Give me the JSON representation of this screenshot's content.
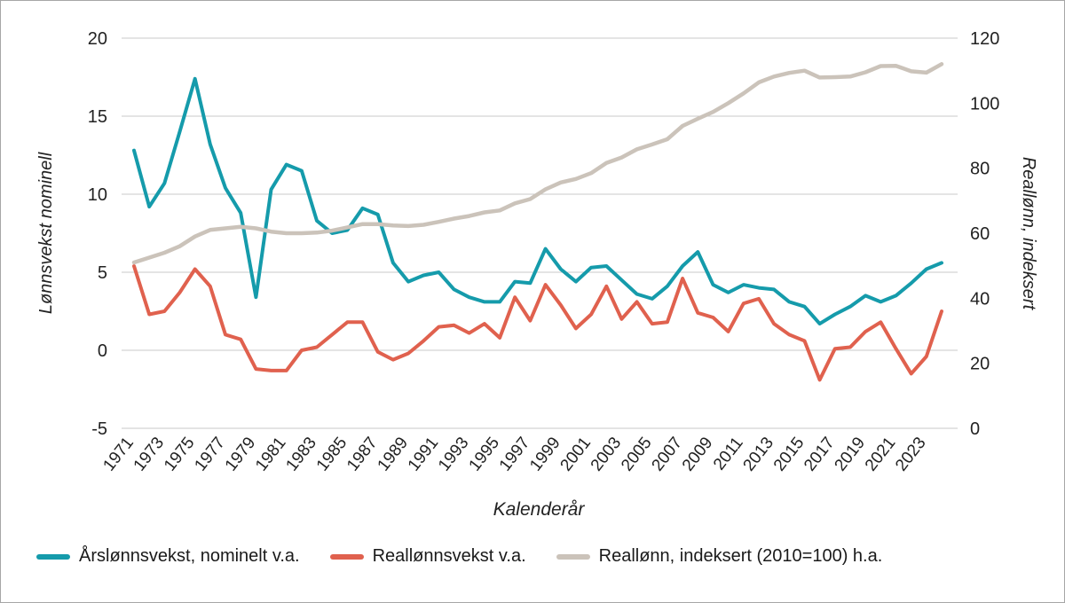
{
  "figure": {
    "background": "#ffffff",
    "border_color": "#a6a6a6"
  },
  "chart_data": {
    "type": "line",
    "title": "",
    "xlabel": "Kalenderår",
    "grid": true,
    "grid_color": "#c8c8c8",
    "legend_position": "bottom",
    "x": [
      1971,
      1972,
      1973,
      1974,
      1975,
      1976,
      1977,
      1978,
      1979,
      1980,
      1981,
      1982,
      1983,
      1984,
      1985,
      1986,
      1987,
      1988,
      1989,
      1990,
      1991,
      1992,
      1993,
      1994,
      1995,
      1996,
      1997,
      1998,
      1999,
      2000,
      2001,
      2002,
      2003,
      2004,
      2005,
      2006,
      2007,
      2008,
      2009,
      2010,
      2011,
      2012,
      2013,
      2014,
      2015,
      2016,
      2017,
      2018,
      2019,
      2020,
      2021,
      2022,
      2023,
      2024
    ],
    "x_tick_labels": [
      1971,
      1973,
      1975,
      1977,
      1979,
      1981,
      1983,
      1985,
      1987,
      1989,
      1991,
      1993,
      1995,
      1997,
      1999,
      2001,
      2003,
      2005,
      2007,
      2009,
      2011,
      2013,
      2015,
      2017,
      2019,
      2021,
      2023
    ],
    "left_axis": {
      "title": "Lønnsvekst nominell",
      "min": -5,
      "max": 20,
      "ticks": [
        -5,
        0,
        5,
        10,
        15,
        20
      ]
    },
    "right_axis": {
      "title": "Reallønn, indeksert",
      "min": 0,
      "max": 120,
      "ticks": [
        0,
        20,
        40,
        60,
        80,
        100,
        120
      ]
    },
    "series": [
      {
        "id": "nominal-wage-growth",
        "name": "Årslønnsvekst, nominelt v.a.",
        "axis": "left",
        "color": "#159bab",
        "width": 4,
        "values": [
          12.8,
          9.2,
          10.7,
          14.0,
          17.4,
          13.2,
          10.4,
          8.8,
          3.4,
          10.3,
          11.9,
          11.5,
          8.3,
          7.5,
          7.7,
          9.1,
          8.7,
          5.6,
          4.4,
          4.8,
          5.0,
          3.9,
          3.4,
          3.1,
          3.1,
          4.4,
          4.3,
          6.5,
          5.2,
          4.4,
          5.3,
          5.4,
          4.5,
          3.6,
          3.3,
          4.1,
          5.4,
          6.3,
          4.2,
          3.7,
          4.2,
          4.0,
          3.9,
          3.1,
          2.8,
          1.7,
          2.3,
          2.8,
          3.5,
          3.1,
          3.5,
          4.3,
          5.2,
          5.6
        ]
      },
      {
        "id": "real-wage-growth",
        "name": "Reallønnsvekst v.a.",
        "axis": "left",
        "color": "#e0614e",
        "width": 4,
        "values": [
          5.4,
          2.3,
          2.5,
          3.7,
          5.2,
          4.1,
          1.0,
          0.7,
          -1.2,
          -1.3,
          -1.3,
          0.0,
          0.2,
          1.0,
          1.8,
          1.8,
          -0.1,
          -0.6,
          -0.2,
          0.6,
          1.5,
          1.6,
          1.1,
          1.7,
          0.8,
          3.4,
          1.9,
          4.2,
          2.9,
          1.4,
          2.3,
          4.1,
          2.0,
          3.1,
          1.7,
          1.8,
          4.6,
          2.4,
          2.1,
          1.2,
          3.0,
          3.3,
          1.7,
          1.0,
          0.6,
          -1.9,
          0.1,
          0.2,
          1.2,
          1.8,
          0.1,
          -1.5,
          -0.4,
          2.5
        ]
      },
      {
        "id": "real-wage-index",
        "name": "Reallønn, indeksert (2010=100) h.a.",
        "axis": "right",
        "color": "#cbc3ba",
        "width": 4.5,
        "values": [
          51,
          52.5,
          54,
          56,
          59,
          61,
          61.5,
          62,
          61.5,
          60.5,
          60,
          60,
          60.2,
          60.8,
          61.8,
          62.8,
          62.8,
          62.4,
          62.2,
          62.6,
          63.5,
          64.5,
          65.3,
          66.4,
          67,
          69.2,
          70.5,
          73.5,
          75.6,
          76.7,
          78.5,
          81.6,
          83.3,
          85.8,
          87.3,
          88.9,
          93,
          95.2,
          97.3,
          100,
          103,
          106.4,
          108.2,
          109.3,
          110,
          107.9,
          108,
          108.2,
          109.5,
          111.4,
          111.5,
          109.8,
          109.4,
          112
        ]
      }
    ]
  }
}
